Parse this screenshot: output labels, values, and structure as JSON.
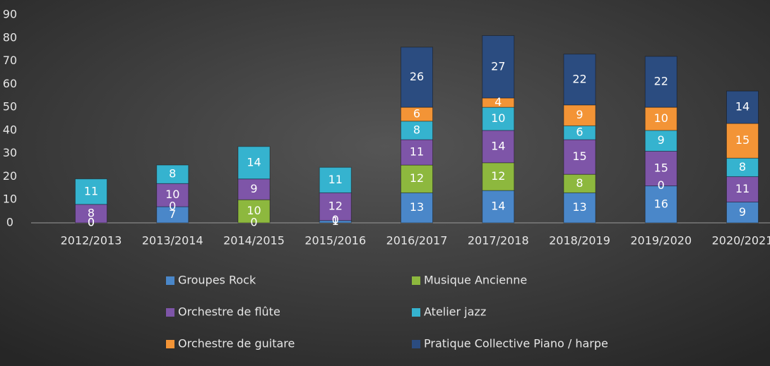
{
  "chart_data": {
    "type": "bar",
    "stacked": true,
    "categories": [
      "2012/2013",
      "2013/2014",
      "2014/2015",
      "2015/2016",
      "2016/2017",
      "2017/2018",
      "2018/2019",
      "2019/2020",
      "2020/2021"
    ],
    "series": [
      {
        "name": "Groupes Rock",
        "color": "#4a87c9",
        "values": [
          0,
          7,
          0,
          1,
          13,
          14,
          13,
          16,
          9
        ]
      },
      {
        "name": "Musique Ancienne",
        "color": "#8db83e",
        "values": [
          0,
          0,
          10,
          0,
          12,
          12,
          8,
          0,
          null
        ]
      },
      {
        "name": "Orchestre de flûte",
        "color": "#7e55a8",
        "values": [
          8,
          10,
          9,
          12,
          11,
          14,
          15,
          15,
          11
        ]
      },
      {
        "name": "Atelier jazz",
        "color": "#35b3cf",
        "values": [
          11,
          8,
          14,
          11,
          8,
          10,
          6,
          9,
          8
        ]
      },
      {
        "name": "Orchestre de guitare",
        "color": "#f39436",
        "values": [
          null,
          null,
          null,
          null,
          6,
          4,
          9,
          10,
          15
        ]
      },
      {
        "name": "Pratique Collective Piano / harpe",
        "color": "#2b4c80",
        "values": [
          null,
          null,
          null,
          null,
          26,
          27,
          22,
          22,
          14
        ]
      }
    ],
    "ylim": [
      0,
      90
    ],
    "yticks": [
      0,
      10,
      20,
      30,
      40,
      50,
      60,
      70,
      80,
      90
    ],
    "legend": "bottom"
  }
}
